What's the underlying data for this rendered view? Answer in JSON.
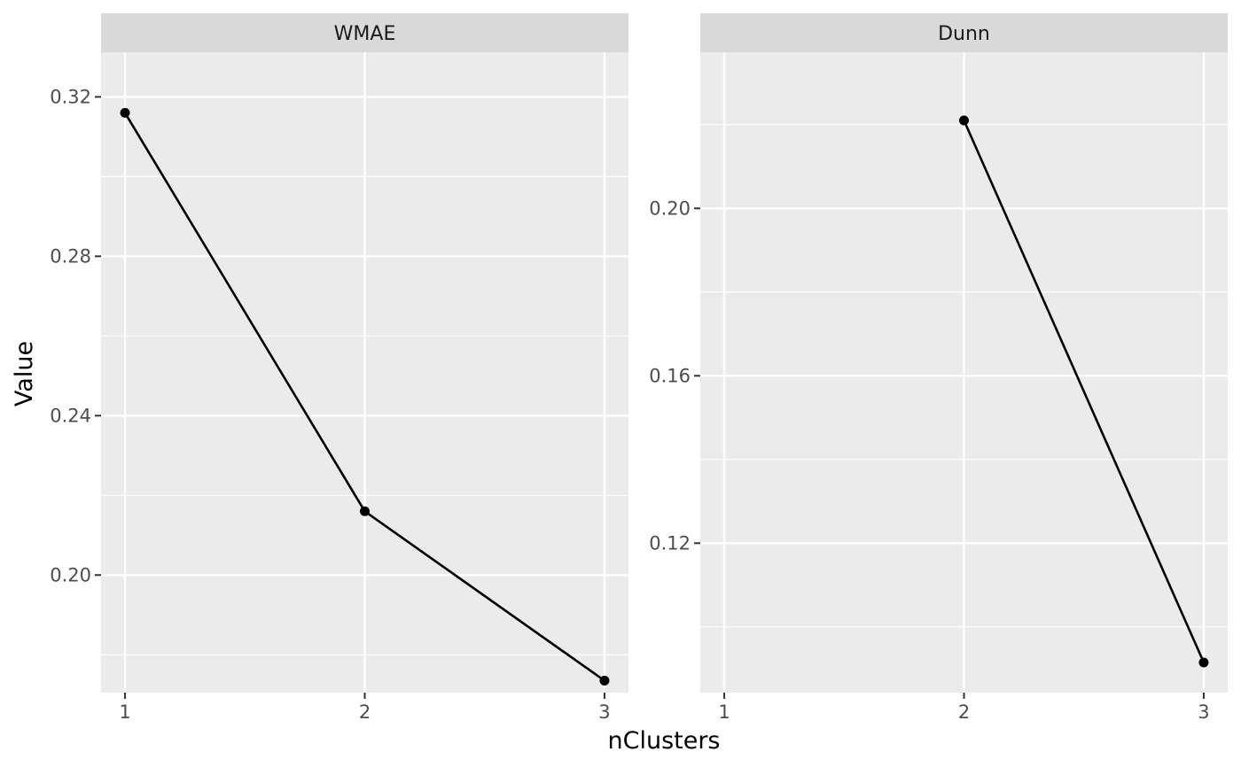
{
  "chart_data": {
    "type": "line",
    "facet_layout": "facet_wrap",
    "xlabel": "nClusters",
    "ylabel": "Value",
    "colors": {
      "panel_background": "#ebebeb",
      "strip_background": "#d9d9d9",
      "gridline": "#ffffff",
      "series": "#000000"
    },
    "panels": [
      {
        "name": "WMAE",
        "x": [
          1,
          2,
          3
        ],
        "values": [
          0.316,
          0.216,
          0.1735
        ],
        "xlim": [
          0.9,
          3.1
        ],
        "ylim": [
          0.1705,
          0.3312
        ],
        "xticks": [
          1,
          2,
          3
        ],
        "xtick_labels": [
          "1",
          "2",
          "3"
        ],
        "yticks": [
          0.2,
          0.24,
          0.28,
          0.32
        ],
        "ytick_labels": [
          "0.20",
          "0.24",
          "0.28",
          "0.32"
        ],
        "yminor": [
          0.18,
          0.22,
          0.26,
          0.3
        ],
        "grid": true
      },
      {
        "name": "Dunn",
        "x": [
          2,
          3
        ],
        "values": [
          0.221,
          0.0915
        ],
        "xlim": [
          0.9,
          3.1
        ],
        "ylim": [
          0.0843,
          0.2373
        ],
        "xticks": [
          1,
          2,
          3
        ],
        "xtick_labels": [
          "1",
          "2",
          "3"
        ],
        "yticks": [
          0.12,
          0.16,
          0.2
        ],
        "ytick_labels": [
          "0.12",
          "0.16",
          "0.20"
        ],
        "yminor": [
          0.1,
          0.14,
          0.18,
          0.22
        ],
        "grid": true
      }
    ]
  }
}
